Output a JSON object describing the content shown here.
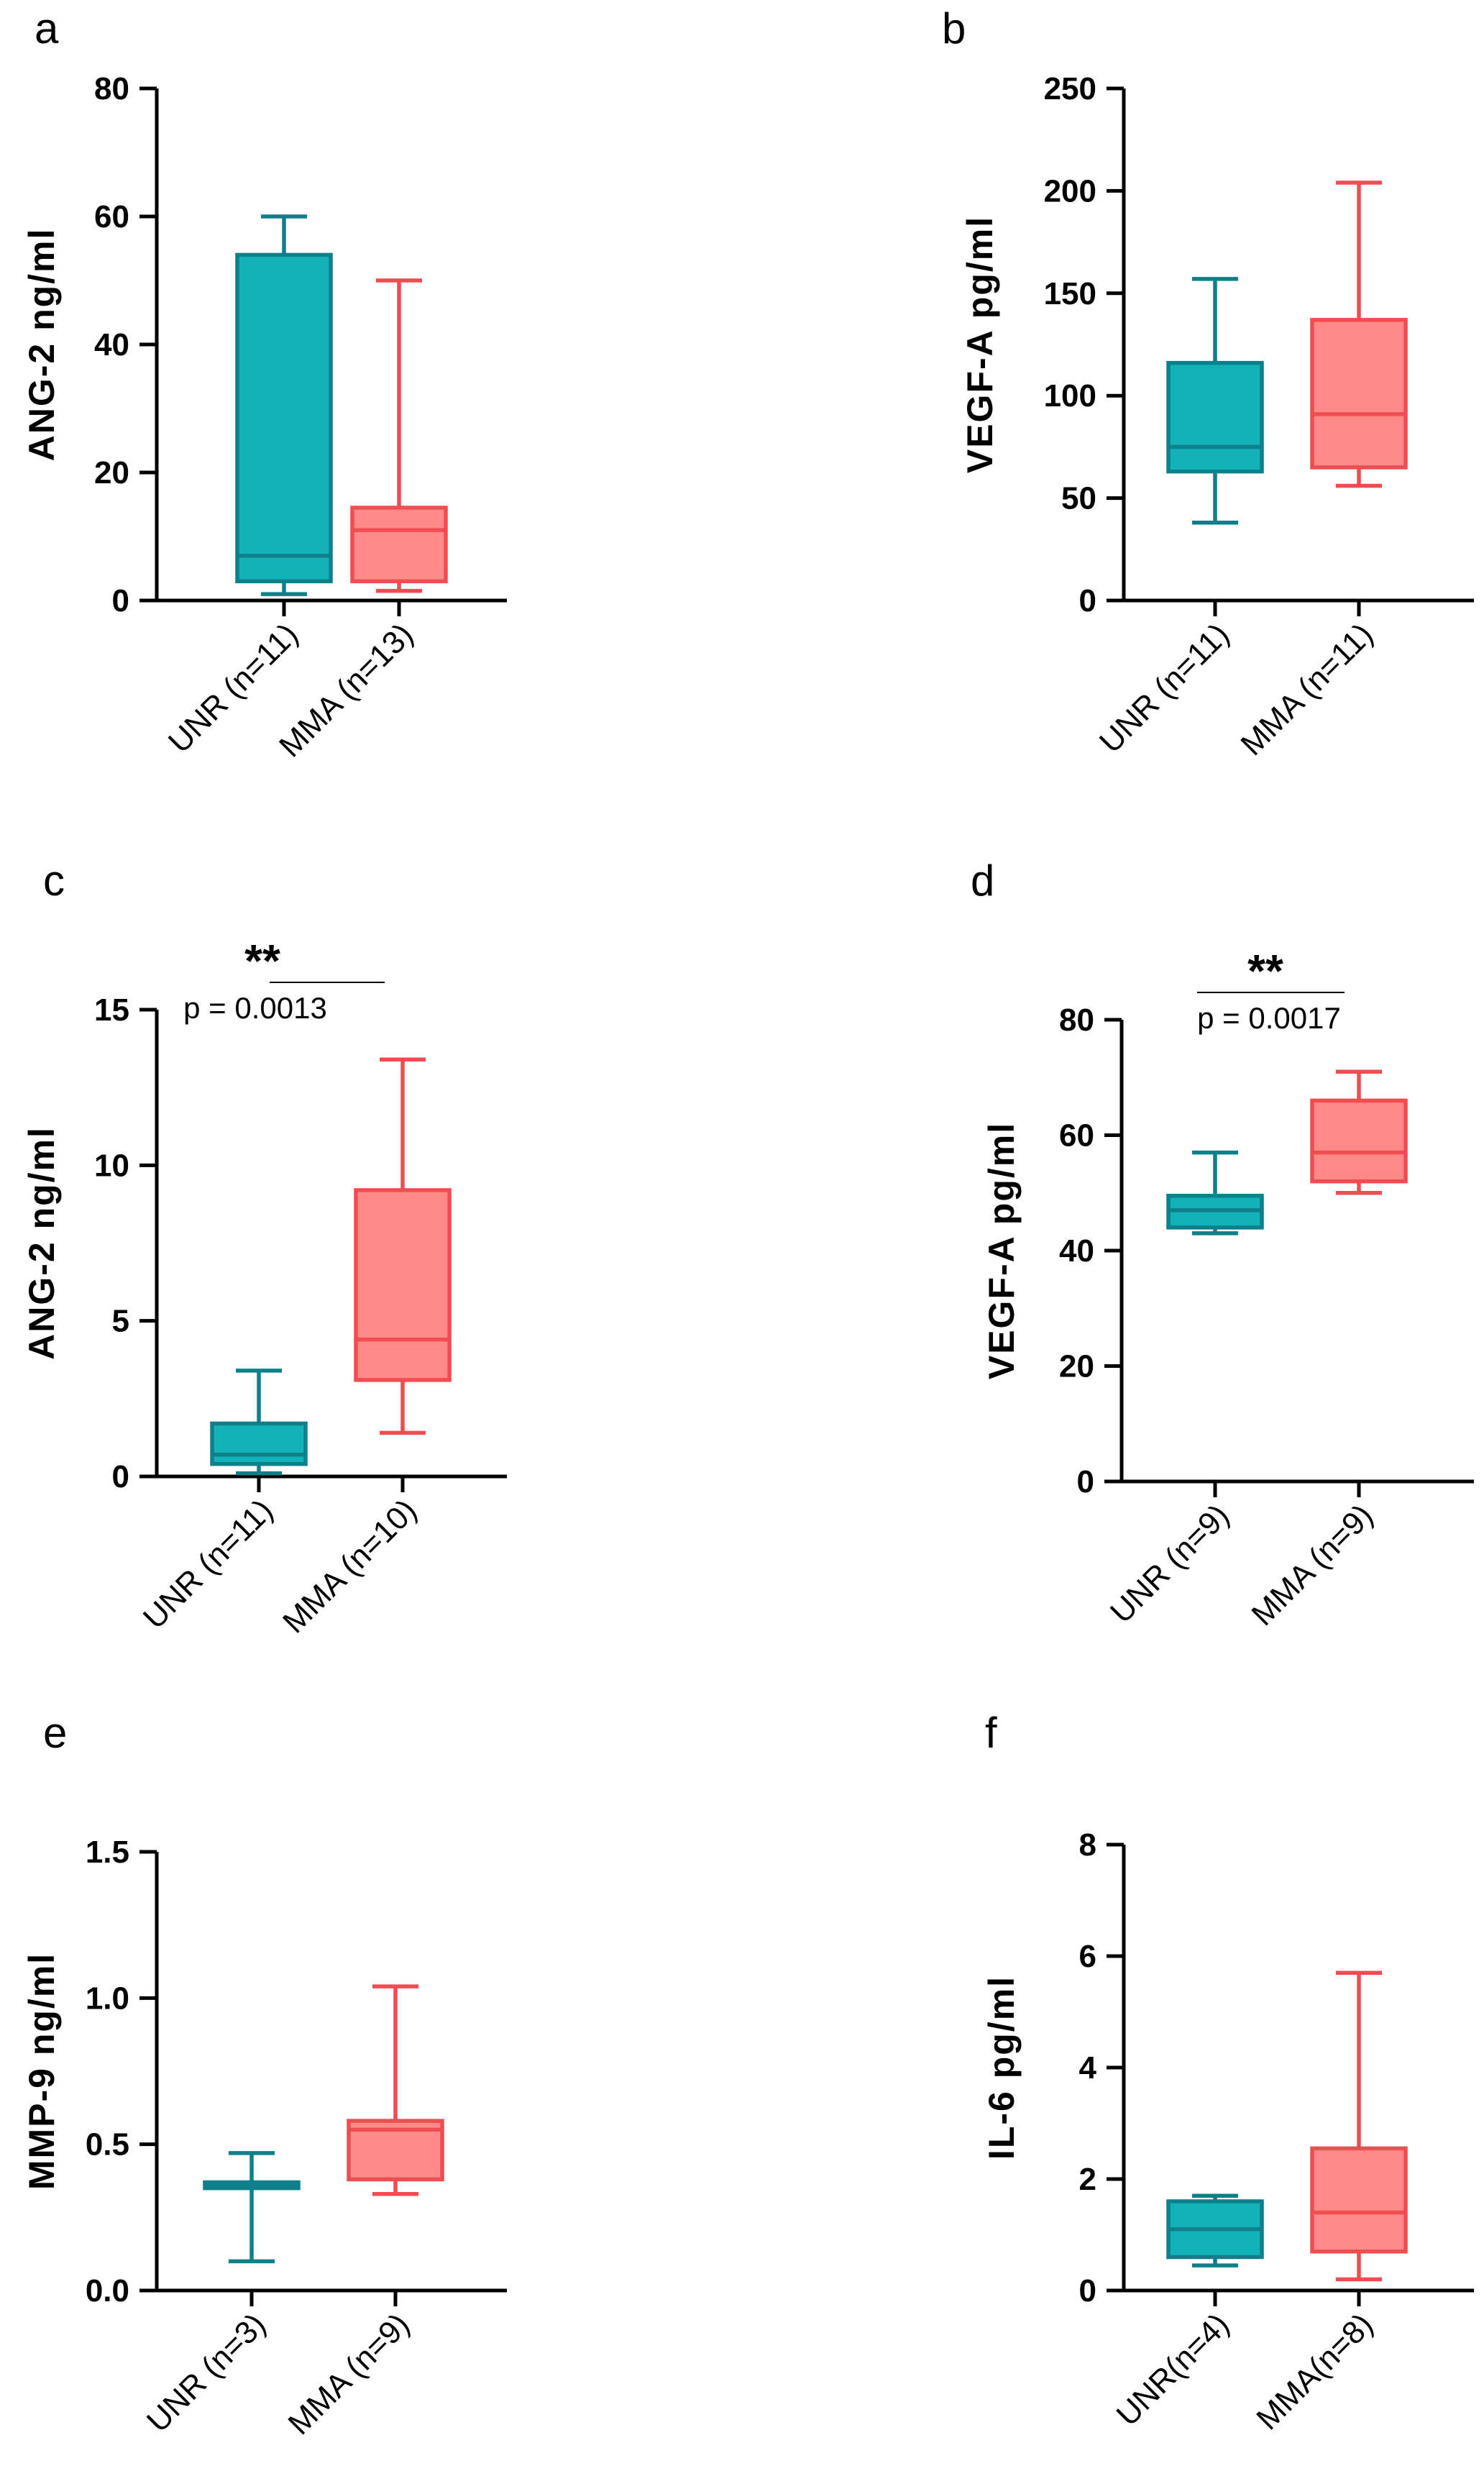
{
  "chart_data": [
    {
      "type": "box",
      "panel": "a",
      "ylabel": "ANG-2 ng/ml",
      "ylim": [
        0,
        80
      ],
      "yticks": [
        0,
        20,
        40,
        60,
        80
      ],
      "ytick_labels": [
        "0",
        "20",
        "40",
        "60",
        "80"
      ],
      "categories": [
        "UNR (n=11)",
        "MMA (n=13)"
      ],
      "boxes": [
        {
          "name": "UNR (n=11)",
          "min": 1,
          "q1": 3,
          "median": 7,
          "q3": 54,
          "max": 60,
          "color": "#1aa3a6"
        },
        {
          "name": "MMA (n=13)",
          "min": 1.5,
          "q1": 3,
          "median": 11,
          "q3": 14.5,
          "max": 50,
          "color": "#f26b6b"
        }
      ]
    },
    {
      "type": "box",
      "panel": "b",
      "ylabel": "VEGF-A pg/ml",
      "ylim": [
        0,
        250
      ],
      "yticks": [
        0,
        50,
        100,
        150,
        200,
        250
      ],
      "ytick_labels": [
        "0",
        "50",
        "100",
        "150",
        "200",
        "250"
      ],
      "categories": [
        "UNR (n=11)",
        "MMA (n=11)"
      ],
      "boxes": [
        {
          "name": "UNR (n=11)",
          "min": 38,
          "q1": 63,
          "median": 75,
          "q3": 116,
          "max": 157,
          "color": "#1aa3a6"
        },
        {
          "name": "MMA (n=11)",
          "min": 56,
          "q1": 65,
          "median": 91,
          "q3": 137,
          "max": 204,
          "color": "#f26b6b"
        }
      ]
    },
    {
      "type": "box",
      "panel": "c",
      "ylabel": "ANG-2 ng/ml",
      "ylim": [
        0,
        15
      ],
      "yticks": [
        0,
        5,
        10,
        15
      ],
      "ytick_labels": [
        "0",
        "5",
        "10",
        "15"
      ],
      "categories": [
        "UNR (n=11)",
        "MMA (n=10)"
      ],
      "significance": {
        "stars": "**",
        "p": "p = 0.0013"
      },
      "boxes": [
        {
          "name": "UNR (n=11)",
          "min": 0.1,
          "q1": 0.4,
          "median": 0.7,
          "q3": 1.7,
          "max": 3.4,
          "color": "#1aa3a6"
        },
        {
          "name": "MMA (n=10)",
          "min": 1.4,
          "q1": 3.1,
          "median": 4.4,
          "q3": 9.2,
          "max": 13.4,
          "color": "#f26b6b"
        }
      ]
    },
    {
      "type": "box",
      "panel": "d",
      "ylabel": "VEGF-A pg/ml",
      "ylim": [
        0,
        80
      ],
      "yticks": [
        0,
        20,
        40,
        60,
        80
      ],
      "ytick_labels": [
        "0",
        "20",
        "40",
        "60",
        "80"
      ],
      "categories": [
        "UNR (n=9)",
        "MMA (n=9)"
      ],
      "significance": {
        "stars": "**",
        "p": "p = 0.0017"
      },
      "boxes": [
        {
          "name": "UNR (n=9)",
          "min": 43,
          "q1": 44,
          "median": 47,
          "q3": 49.5,
          "max": 57,
          "color": "#1aa3a6"
        },
        {
          "name": "MMA (n=9)",
          "min": 50,
          "q1": 52,
          "median": 57,
          "q3": 66,
          "max": 71,
          "color": "#f26b6b"
        }
      ]
    },
    {
      "type": "box",
      "panel": "e",
      "ylabel": "MMP-9 ng/ml",
      "ylim": [
        0,
        1.5
      ],
      "yticks": [
        0,
        0.5,
        1.0,
        1.5
      ],
      "ytick_labels": [
        "0.0",
        "0.5",
        "1.0",
        "1.5"
      ],
      "categories": [
        "UNR (n=3)",
        "MMA (n=9)"
      ],
      "boxes": [
        {
          "name": "UNR (n=3)",
          "min": 0.1,
          "q1": 0.35,
          "median": 0.36,
          "q3": 0.37,
          "max": 0.47,
          "color": "#1aa3a6"
        },
        {
          "name": "MMA (n=9)",
          "min": 0.33,
          "q1": 0.38,
          "median": 0.55,
          "q3": 0.58,
          "max": 1.04,
          "color": "#f26b6b"
        }
      ]
    },
    {
      "type": "box",
      "panel": "f",
      "ylabel": "IL-6 pg/ml",
      "ylim": [
        0,
        8
      ],
      "yticks": [
        0,
        2,
        4,
        6,
        8
      ],
      "ytick_labels": [
        "0",
        "2",
        "4",
        "6",
        "8"
      ],
      "categories": [
        "UNR(n=4)",
        "MMA(n=8)"
      ],
      "boxes": [
        {
          "name": "UNR(n=4)",
          "min": 0.45,
          "q1": 0.6,
          "median": 1.1,
          "q3": 1.6,
          "max": 1.7,
          "color": "#1aa3a6"
        },
        {
          "name": "MMA(n=8)",
          "min": 0.2,
          "q1": 0.7,
          "median": 1.4,
          "q3": 2.55,
          "max": 5.7,
          "color": "#f26b6b"
        }
      ]
    }
  ]
}
